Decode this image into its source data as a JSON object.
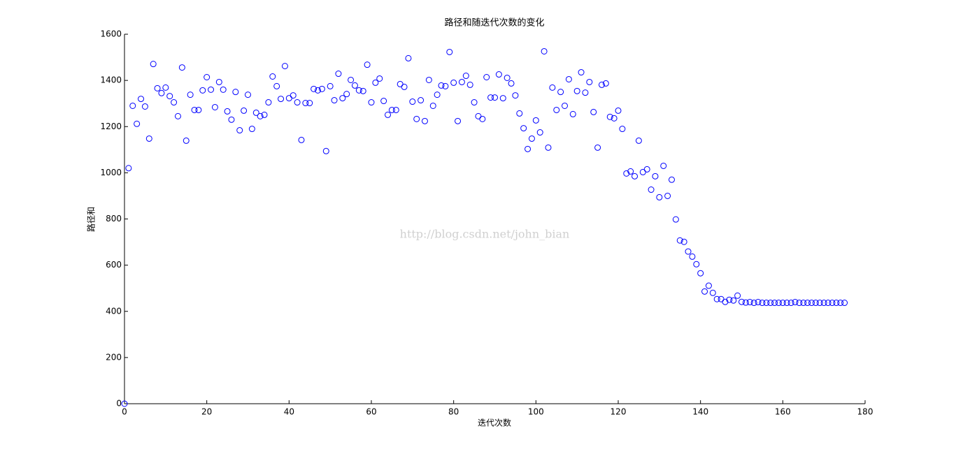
{
  "chart_data": {
    "type": "scatter",
    "title": "路径和随迭代次数的变化",
    "x_label": "迭代次数",
    "y_label": "路径和",
    "annotation": "http://blog.csdn.net/john_bian",
    "marker_color": "#0000ff",
    "xlim": [
      0,
      180
    ],
    "xticks": [
      0,
      20,
      40,
      60,
      80,
      100,
      120,
      140,
      160,
      180
    ],
    "ylim": [
      0,
      1600
    ],
    "yticks": [
      0,
      200,
      400,
      600,
      800,
      1000,
      1200,
      1400,
      1600
    ],
    "x": [
      0,
      1,
      2,
      3,
      4,
      5,
      6,
      7,
      8,
      9,
      10,
      11,
      12,
      13,
      14,
      15,
      16,
      17,
      18,
      19,
      20,
      21,
      22,
      23,
      24,
      25,
      26,
      27,
      28,
      29,
      30,
      31,
      32,
      33,
      34,
      35,
      36,
      37,
      38,
      39,
      40,
      41,
      42,
      43,
      44,
      45,
      46,
      47,
      48,
      49,
      50,
      51,
      52,
      53,
      54,
      55,
      56,
      57,
      58,
      59,
      60,
      61,
      62,
      63,
      64,
      65,
      66,
      67,
      68,
      69,
      70,
      71,
      72,
      73,
      74,
      75,
      76,
      77,
      78,
      79,
      80,
      81,
      82,
      83,
      84,
      85,
      86,
      87,
      88,
      89,
      90,
      91,
      92,
      93,
      94,
      95,
      96,
      97,
      98,
      99,
      100,
      101,
      102,
      103,
      104,
      105,
      106,
      107,
      108,
      109,
      110,
      111,
      112,
      113,
      114,
      115,
      116,
      117,
      118,
      119,
      120,
      121,
      122,
      123,
      124,
      125,
      126,
      127,
      128,
      129,
      130,
      131,
      132,
      133,
      134,
      135,
      136,
      137,
      138,
      139,
      140,
      141,
      142,
      143,
      144,
      145,
      146,
      147,
      148,
      149,
      150,
      151,
      152,
      153,
      154,
      155,
      156,
      157,
      158,
      159,
      160,
      161,
      162,
      163,
      164,
      165,
      166,
      167,
      168,
      169,
      170,
      171,
      172,
      173,
      174,
      175
    ],
    "values": [
      0,
      1020,
      1290,
      1212,
      1320,
      1287,
      1148,
      1471,
      1366,
      1345,
      1369,
      1332,
      1305,
      1245,
      1456,
      1139,
      1338,
      1272,
      1272,
      1357,
      1414,
      1360,
      1284,
      1393,
      1360,
      1266,
      1230,
      1350,
      1184,
      1269,
      1338,
      1190,
      1260,
      1245,
      1251,
      1305,
      1417,
      1375,
      1320,
      1462,
      1323,
      1335,
      1305,
      1142,
      1302,
      1302,
      1363,
      1357,
      1363,
      1094,
      1375,
      1314,
      1429,
      1323,
      1341,
      1402,
      1378,
      1357,
      1354,
      1468,
      1305,
      1390,
      1408,
      1311,
      1251,
      1272,
      1272,
      1384,
      1372,
      1496,
      1308,
      1233,
      1314,
      1224,
      1402,
      1290,
      1338,
      1378,
      1375,
      1523,
      1390,
      1224,
      1393,
      1420,
      1381,
      1305,
      1245,
      1233,
      1414,
      1326,
      1326,
      1426,
      1323,
      1411,
      1387,
      1335,
      1257,
      1193,
      1103,
      1148,
      1227,
      1175,
      1526,
      1109,
      1369,
      1272,
      1350,
      1290,
      1405,
      1254,
      1354,
      1435,
      1347,
      1393,
      1263,
      1109,
      1381,
      1387,
      1242,
      1236,
      1269,
      1190,
      997,
      1006,
      985,
      1139,
      1003,
      1015,
      927,
      985,
      894,
      1030,
      900,
      970,
      798,
      707,
      701,
      659,
      637,
      604,
      565,
      486,
      511,
      480,
      453,
      453,
      441,
      450,
      447,
      468,
      441,
      438,
      440,
      437,
      440,
      437,
      437,
      437,
      437,
      437,
      437,
      437,
      437,
      440,
      437,
      437,
      437,
      437,
      437,
      437,
      437,
      437,
      437,
      437,
      437,
      437
    ]
  }
}
